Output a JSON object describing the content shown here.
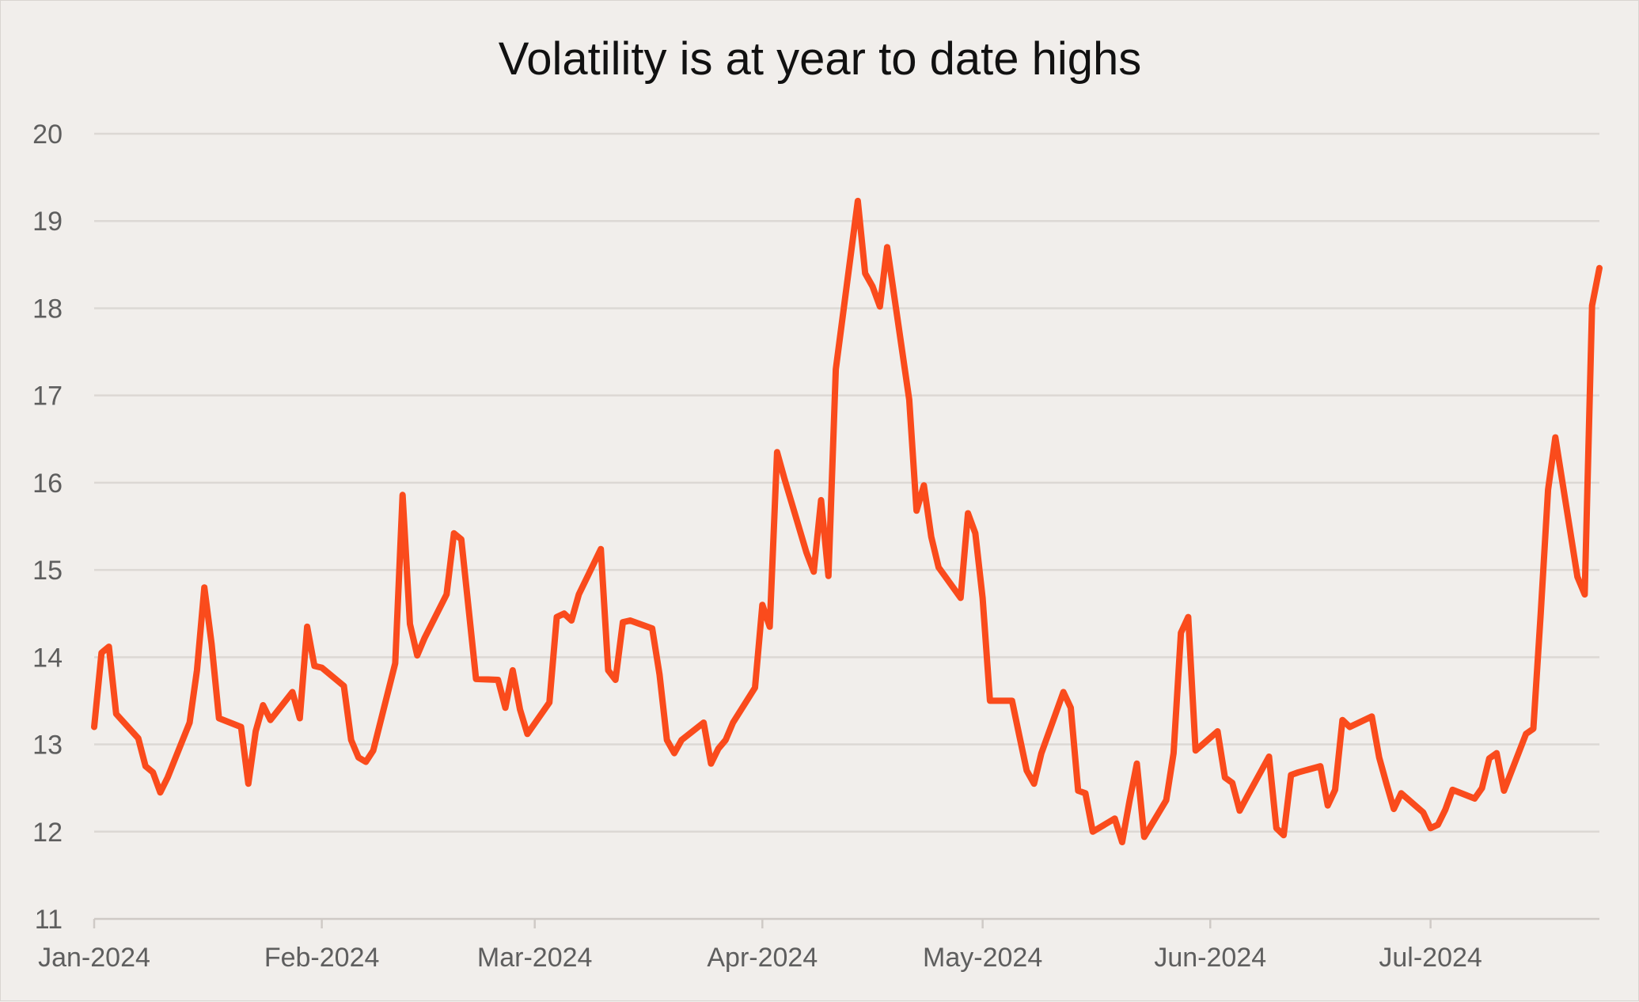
{
  "chart_data": {
    "type": "line",
    "title": "Volatility is at year to date highs",
    "xlabel": "",
    "ylabel": "",
    "ylim": [
      11,
      20
    ],
    "yticks": [
      11,
      12,
      13,
      14,
      15,
      16,
      17,
      18,
      19,
      20
    ],
    "xlim": [
      "2024-01-01",
      "2024-07-24"
    ],
    "xticks": [
      {
        "date": "2024-01-01",
        "label": "Jan-2024"
      },
      {
        "date": "2024-02-01",
        "label": "Feb-2024"
      },
      {
        "date": "2024-03-01",
        "label": "Mar-2024"
      },
      {
        "date": "2024-04-01",
        "label": "Apr-2024"
      },
      {
        "date": "2024-05-01",
        "label": "May-2024"
      },
      {
        "date": "2024-06-01",
        "label": "Jun-2024"
      },
      {
        "date": "2024-07-01",
        "label": "Jul-2024"
      }
    ],
    "grid": true,
    "legend": "none",
    "color": "#fa4b1c",
    "series": [
      {
        "x": [
          "2024-01-01",
          "2024-01-02",
          "2024-01-03",
          "2024-01-04",
          "2024-01-07",
          "2024-01-08",
          "2024-01-09",
          "2024-01-10",
          "2024-01-11",
          "2024-01-14",
          "2024-01-15",
          "2024-01-16",
          "2024-01-17",
          "2024-01-18",
          "2024-01-21",
          "2024-01-22",
          "2024-01-23",
          "2024-01-24",
          "2024-01-25",
          "2024-01-28",
          "2024-01-29",
          "2024-01-30",
          "2024-01-31",
          "2024-02-01",
          "2024-02-04",
          "2024-02-05",
          "2024-02-06",
          "2024-02-07",
          "2024-02-08",
          "2024-02-11",
          "2024-02-12",
          "2024-02-13",
          "2024-02-14",
          "2024-02-15",
          "2024-02-18",
          "2024-02-19",
          "2024-02-20",
          "2024-02-21",
          "2024-02-22",
          "2024-02-25",
          "2024-02-26",
          "2024-02-27",
          "2024-02-28",
          "2024-02-29",
          "2024-03-03",
          "2024-03-04",
          "2024-03-05",
          "2024-03-06",
          "2024-03-07",
          "2024-03-10",
          "2024-03-11",
          "2024-03-12",
          "2024-03-13",
          "2024-03-14",
          "2024-03-17",
          "2024-03-18",
          "2024-03-19",
          "2024-03-20",
          "2024-03-21",
          "2024-03-24",
          "2024-03-25",
          "2024-03-26",
          "2024-03-27",
          "2024-03-28",
          "2024-03-31",
          "2024-04-01",
          "2024-04-02",
          "2024-04-03",
          "2024-04-04",
          "2024-04-07",
          "2024-04-08",
          "2024-04-09",
          "2024-04-10",
          "2024-04-11",
          "2024-04-14",
          "2024-04-15",
          "2024-04-16",
          "2024-04-17",
          "2024-04-18",
          "2024-04-21",
          "2024-04-22",
          "2024-04-23",
          "2024-04-24",
          "2024-04-25",
          "2024-04-28",
          "2024-04-29",
          "2024-04-30",
          "2024-05-01",
          "2024-05-02",
          "2024-05-05",
          "2024-05-06",
          "2024-05-07",
          "2024-05-08",
          "2024-05-09",
          "2024-05-12",
          "2024-05-13",
          "2024-05-14",
          "2024-05-15",
          "2024-05-16",
          "2024-05-19",
          "2024-05-20",
          "2024-05-21",
          "2024-05-22",
          "2024-05-23",
          "2024-05-26",
          "2024-05-27",
          "2024-05-28",
          "2024-05-29",
          "2024-05-30",
          "2024-06-02",
          "2024-06-03",
          "2024-06-04",
          "2024-06-05",
          "2024-06-06",
          "2024-06-09",
          "2024-06-10",
          "2024-06-11",
          "2024-06-12",
          "2024-06-13",
          "2024-06-16",
          "2024-06-17",
          "2024-06-18",
          "2024-06-19",
          "2024-06-20",
          "2024-06-23",
          "2024-06-24",
          "2024-06-25",
          "2024-06-26",
          "2024-06-27",
          "2024-06-30",
          "2024-07-01",
          "2024-07-02",
          "2024-07-03",
          "2024-07-04",
          "2024-07-07",
          "2024-07-08",
          "2024-07-09",
          "2024-07-10",
          "2024-07-11",
          "2024-07-14",
          "2024-07-15",
          "2024-07-16",
          "2024-07-17",
          "2024-07-18",
          "2024-07-21",
          "2024-07-22",
          "2024-07-23",
          "2024-07-24"
        ],
        "values": [
          13.2,
          14.05,
          14.12,
          13.35,
          13.07,
          12.75,
          12.68,
          12.45,
          12.62,
          13.25,
          13.85,
          14.8,
          14.15,
          13.3,
          13.2,
          12.55,
          13.15,
          13.45,
          13.28,
          13.6,
          13.3,
          14.35,
          13.9,
          13.88,
          13.67,
          13.05,
          12.85,
          12.8,
          12.93,
          13.93,
          15.86,
          14.38,
          14.02,
          14.22,
          14.72,
          15.42,
          15.35,
          14.55,
          13.75,
          13.74,
          13.42,
          13.85,
          13.4,
          13.12,
          13.48,
          14.46,
          14.5,
          14.42,
          14.72,
          15.24,
          13.85,
          13.74,
          14.4,
          14.42,
          14.33,
          13.8,
          13.05,
          12.9,
          13.05,
          13.25,
          12.78,
          12.95,
          13.05,
          13.25,
          13.65,
          14.6,
          14.35,
          16.35,
          16.05,
          15.2,
          14.98,
          15.8,
          14.93,
          17.3,
          19.23,
          18.4,
          18.25,
          18.02,
          18.7,
          16.95,
          15.68,
          15.97,
          15.38,
          15.03,
          14.68,
          15.65,
          15.42,
          14.68,
          13.5,
          13.5,
          13.1,
          12.7,
          12.55,
          12.9,
          13.6,
          13.42,
          12.47,
          12.44,
          12.0,
          12.15,
          11.88,
          12.35,
          12.78,
          11.94,
          12.36,
          12.9,
          14.28,
          14.46,
          12.93,
          13.15,
          12.62,
          12.56,
          12.24,
          12.4,
          12.86,
          12.04,
          11.96,
          12.65,
          12.68,
          12.75,
          12.3,
          12.48,
          13.28,
          13.2,
          13.32,
          12.85,
          12.55,
          12.26,
          12.44,
          12.22,
          12.04,
          12.08,
          12.25,
          12.48,
          12.38,
          12.5,
          12.84,
          12.9,
          12.47,
          13.12,
          13.18,
          14.5,
          15.92,
          16.52,
          14.92,
          14.72,
          18.03,
          18.46
        ]
      }
    ]
  }
}
